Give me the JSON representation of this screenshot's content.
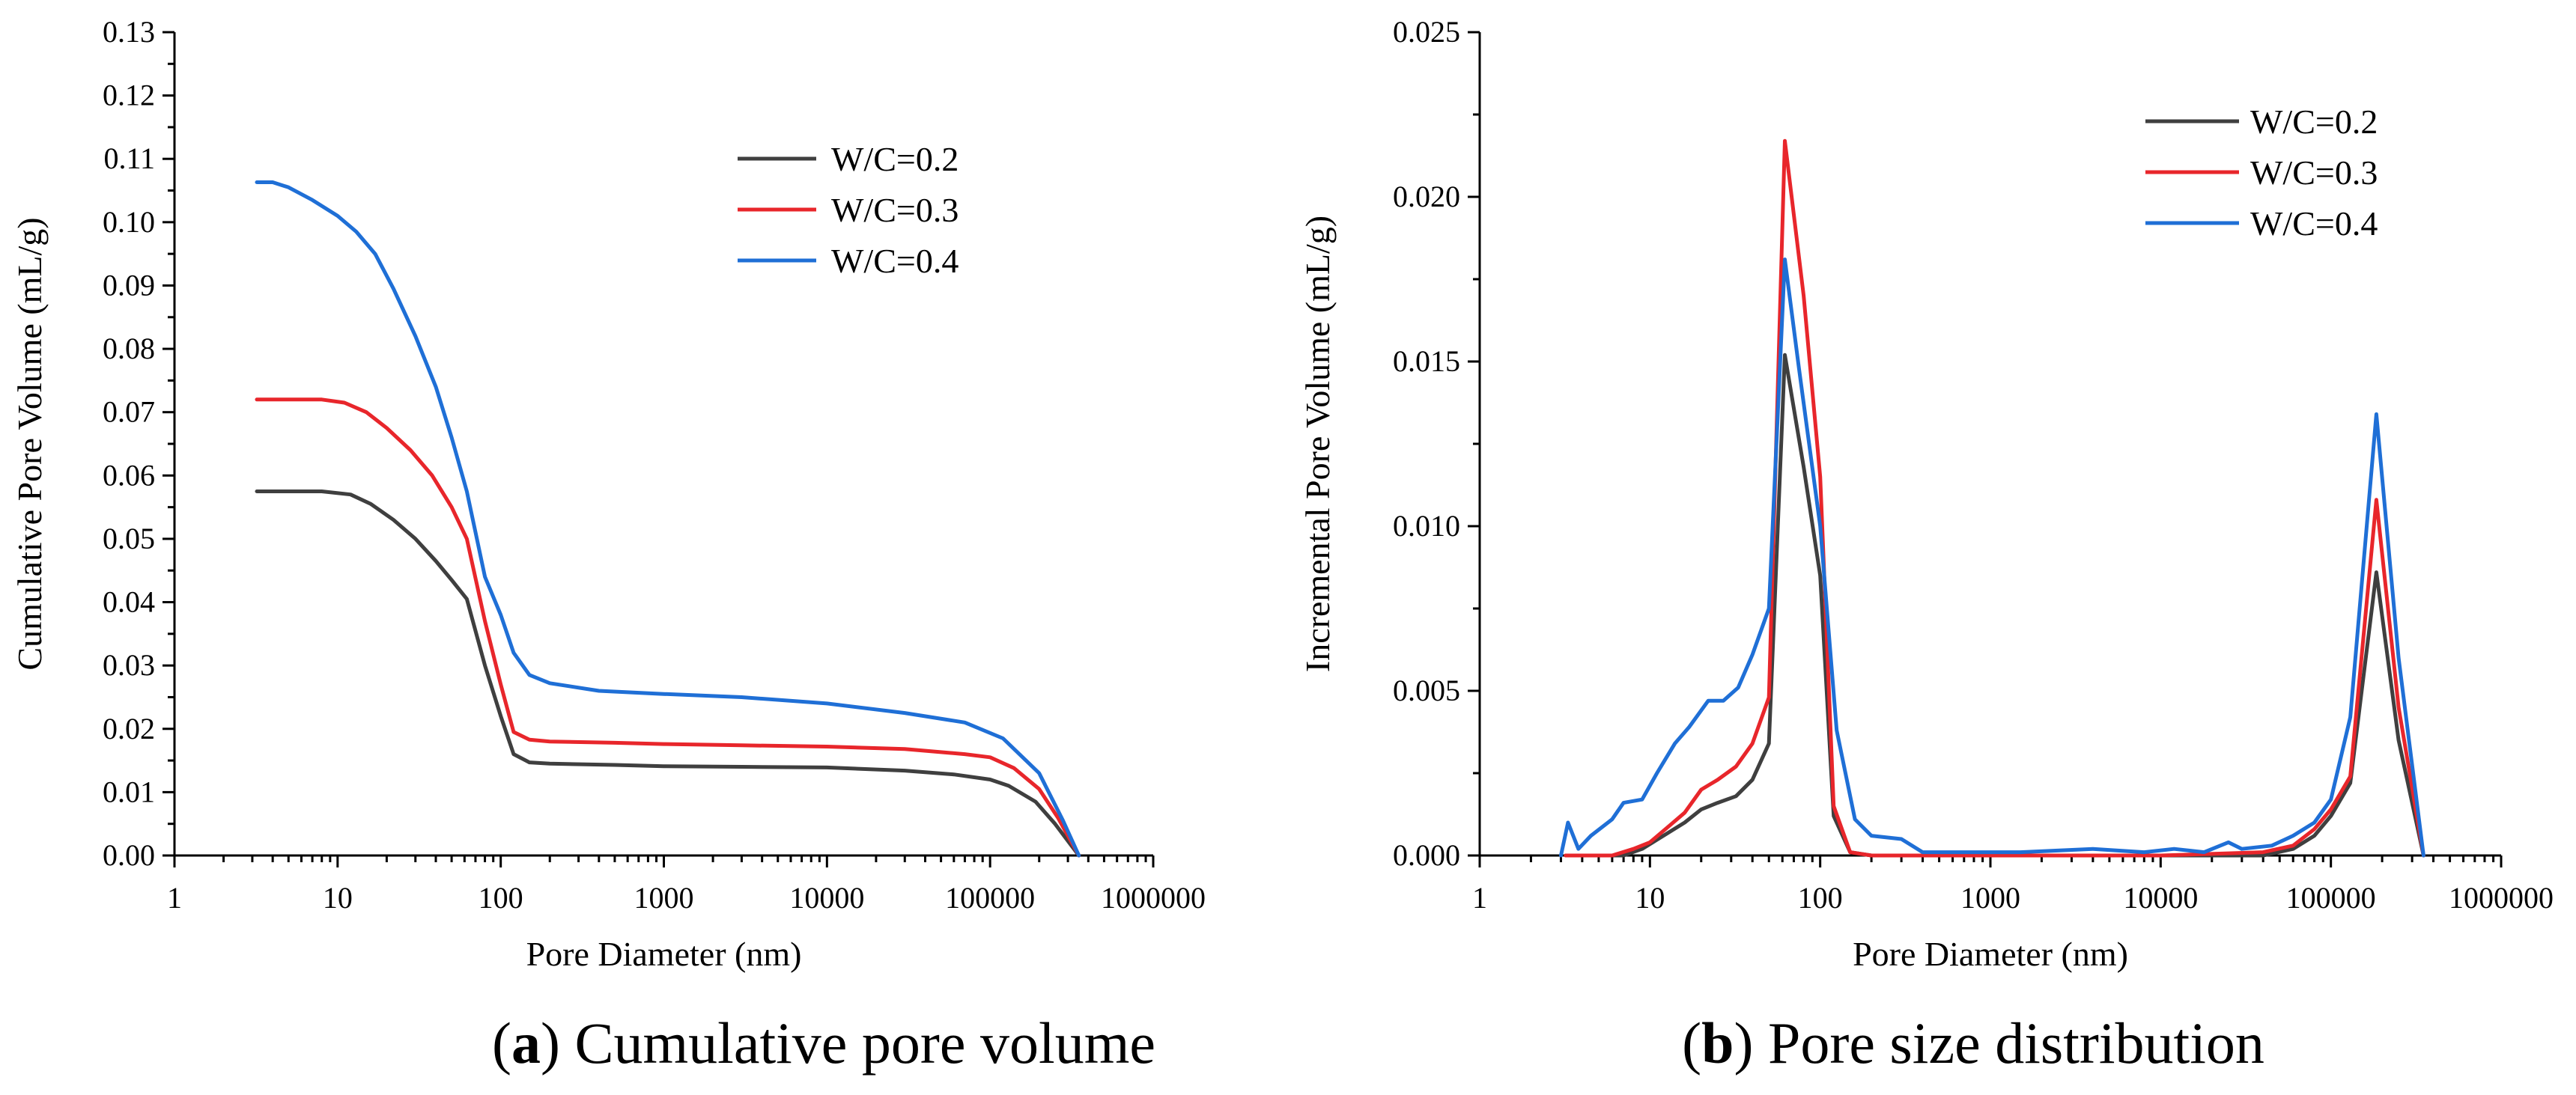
{
  "colors": {
    "wc02": "#3f3f3f",
    "wc03": "#e8262b",
    "wc04": "#1f6fd6"
  },
  "chart_data": [
    {
      "id": "a",
      "type": "line",
      "xscale": "log",
      "xlim": [
        1,
        1000000
      ],
      "ylim": [
        0,
        0.13
      ],
      "xlabel": "Pore Diameter (nm)",
      "ylabel": "Cumulative Pore Volume  (mL/g)",
      "xticks": [
        "1",
        "10",
        "100",
        "1000",
        "10000",
        "100000",
        "1000000"
      ],
      "yticks": [
        "0.00",
        "0.01",
        "0.02",
        "0.03",
        "0.04",
        "0.05",
        "0.06",
        "0.07",
        "0.08",
        "0.09",
        "0.10",
        "0.11",
        "0.12",
        "0.13"
      ],
      "caption_letter": "a",
      "caption_text": " Cumulative pore volume",
      "legend_position": "top-right",
      "series": [
        {
          "name": "W/C=0.2",
          "color_key": "wc02",
          "points": [
            [
              3.2,
              0.0575
            ],
            [
              5,
              0.0575
            ],
            [
              8,
              0.0575
            ],
            [
              12,
              0.057
            ],
            [
              16,
              0.0555
            ],
            [
              22,
              0.053
            ],
            [
              30,
              0.05
            ],
            [
              40,
              0.0465
            ],
            [
              50,
              0.0435
            ],
            [
              62,
              0.0405
            ],
            [
              80,
              0.03
            ],
            [
              100,
              0.022
            ],
            [
              120,
              0.016
            ],
            [
              150,
              0.0147
            ],
            [
              200,
              0.0145
            ],
            [
              500,
              0.0143
            ],
            [
              1000,
              0.0141
            ],
            [
              3000,
              0.014
            ],
            [
              10000,
              0.0139
            ],
            [
              30000,
              0.0134
            ],
            [
              60000,
              0.0128
            ],
            [
              100000,
              0.012
            ],
            [
              130000,
              0.011
            ],
            [
              190000,
              0.0085
            ],
            [
              250000,
              0.005
            ],
            [
              350000,
              0.0
            ]
          ]
        },
        {
          "name": "W/C=0.3",
          "color_key": "wc03",
          "points": [
            [
              3.2,
              0.072
            ],
            [
              5,
              0.072
            ],
            [
              8,
              0.072
            ],
            [
              11,
              0.0715
            ],
            [
              15,
              0.07
            ],
            [
              20,
              0.0675
            ],
            [
              28,
              0.064
            ],
            [
              38,
              0.06
            ],
            [
              50,
              0.055
            ],
            [
              62,
              0.05
            ],
            [
              80,
              0.037
            ],
            [
              100,
              0.027
            ],
            [
              120,
              0.0195
            ],
            [
              150,
              0.0183
            ],
            [
              200,
              0.018
            ],
            [
              500,
              0.0178
            ],
            [
              1000,
              0.0176
            ],
            [
              3000,
              0.0174
            ],
            [
              10000,
              0.0172
            ],
            [
              30000,
              0.0168
            ],
            [
              70000,
              0.016
            ],
            [
              100000,
              0.0155
            ],
            [
              140000,
              0.0138
            ],
            [
              200000,
              0.0105
            ],
            [
              260000,
              0.006
            ],
            [
              350000,
              0.0
            ]
          ]
        },
        {
          "name": "W/C=0.4",
          "color_key": "wc04",
          "points": [
            [
              3.2,
              0.1063
            ],
            [
              4,
              0.1063
            ],
            [
              5,
              0.1055
            ],
            [
              7,
              0.1035
            ],
            [
              10,
              0.101
            ],
            [
              13,
              0.0985
            ],
            [
              17,
              0.095
            ],
            [
              22,
              0.0895
            ],
            [
              30,
              0.082
            ],
            [
              40,
              0.074
            ],
            [
              50,
              0.066
            ],
            [
              62,
              0.0575
            ],
            [
              80,
              0.044
            ],
            [
              100,
              0.038
            ],
            [
              120,
              0.032
            ],
            [
              150,
              0.0285
            ],
            [
              200,
              0.0272
            ],
            [
              400,
              0.026
            ],
            [
              1000,
              0.0255
            ],
            [
              3000,
              0.025
            ],
            [
              10000,
              0.024
            ],
            [
              30000,
              0.0225
            ],
            [
              70000,
              0.021
            ],
            [
              120000,
              0.0185
            ],
            [
              200000,
              0.013
            ],
            [
              280000,
              0.0055
            ],
            [
              350000,
              0.0
            ]
          ]
        }
      ]
    },
    {
      "id": "b",
      "type": "line",
      "xscale": "log",
      "xlim": [
        1,
        1000000
      ],
      "ylim": [
        0,
        0.025
      ],
      "xlabel": "Pore Diameter (nm)",
      "ylabel": "Incremental Pore Volume (mL/g)",
      "xticks": [
        "1",
        "10",
        "100",
        "1000",
        "10000",
        "100000",
        "1000000"
      ],
      "yticks": [
        "0.000",
        "0.005",
        "0.010",
        "0.015",
        "0.020",
        "0.025"
      ],
      "caption_letter": "b",
      "caption_text": " Pore size distribution",
      "legend_position": "top-right",
      "series": [
        {
          "name": "W/C=0.2",
          "color_key": "wc02",
          "points": [
            [
              3.2,
              0
            ],
            [
              7,
              0
            ],
            [
              9,
              0.0002
            ],
            [
              12,
              0.0006
            ],
            [
              16,
              0.001
            ],
            [
              20,
              0.0014
            ],
            [
              25,
              0.0016
            ],
            [
              32,
              0.0018
            ],
            [
              40,
              0.0023
            ],
            [
              50,
              0.0034
            ],
            [
              62,
              0.0152
            ],
            [
              80,
              0.0118
            ],
            [
              100,
              0.0085
            ],
            [
              120,
              0.0012
            ],
            [
              150,
              0.0001
            ],
            [
              200,
              0
            ],
            [
              1000,
              0
            ],
            [
              10000,
              0
            ],
            [
              40000,
              0
            ],
            [
              60000,
              0.0002
            ],
            [
              80000,
              0.0006
            ],
            [
              100000,
              0.0012
            ],
            [
              130000,
              0.0022
            ],
            [
              185000,
              0.0086
            ],
            [
              250000,
              0.0035
            ],
            [
              350000,
              0
            ]
          ]
        },
        {
          "name": "W/C=0.3",
          "color_key": "wc03",
          "points": [
            [
              3.2,
              0
            ],
            [
              6,
              0
            ],
            [
              8,
              0.0002
            ],
            [
              10,
              0.0004
            ],
            [
              13,
              0.0009
            ],
            [
              16,
              0.0013
            ],
            [
              20,
              0.002
            ],
            [
              25,
              0.0023
            ],
            [
              32,
              0.0027
            ],
            [
              40,
              0.0034
            ],
            [
              50,
              0.0048
            ],
            [
              62,
              0.0217
            ],
            [
              80,
              0.017
            ],
            [
              100,
              0.0115
            ],
            [
              120,
              0.0015
            ],
            [
              150,
              0.0001
            ],
            [
              200,
              0
            ],
            [
              1000,
              0
            ],
            [
              10000,
              0
            ],
            [
              40000,
              0.0001
            ],
            [
              60000,
              0.0003
            ],
            [
              80000,
              0.0008
            ],
            [
              100000,
              0.0014
            ],
            [
              130000,
              0.0024
            ],
            [
              185000,
              0.0108
            ],
            [
              250000,
              0.0045
            ],
            [
              350000,
              0
            ]
          ]
        },
        {
          "name": "W/C=0.4",
          "color_key": "wc04",
          "points": [
            [
              3,
              0
            ],
            [
              3.3,
              0.001
            ],
            [
              3.8,
              0.0002
            ],
            [
              4.5,
              0.0006
            ],
            [
              6,
              0.0011
            ],
            [
              7,
              0.0016
            ],
            [
              9,
              0.0017
            ],
            [
              11,
              0.0025
            ],
            [
              14,
              0.0034
            ],
            [
              17,
              0.0039
            ],
            [
              22,
              0.0047
            ],
            [
              27,
              0.0047
            ],
            [
              33,
              0.0051
            ],
            [
              40,
              0.0061
            ],
            [
              50,
              0.0075
            ],
            [
              62,
              0.0181
            ],
            [
              75,
              0.0148
            ],
            [
              100,
              0.01
            ],
            [
              125,
              0.0038
            ],
            [
              160,
              0.0011
            ],
            [
              200,
              0.0006
            ],
            [
              300,
              0.0005
            ],
            [
              400,
              0.0001
            ],
            [
              800,
              0.0001
            ],
            [
              1500,
              0.0001
            ],
            [
              4000,
              0.0002
            ],
            [
              8000,
              0.0001
            ],
            [
              12000,
              0.0002
            ],
            [
              18000,
              0.0001
            ],
            [
              25000,
              0.0004
            ],
            [
              30000,
              0.0002
            ],
            [
              45000,
              0.0003
            ],
            [
              60000,
              0.0006
            ],
            [
              80000,
              0.001
            ],
            [
              100000,
              0.0017
            ],
            [
              130000,
              0.0042
            ],
            [
              185000,
              0.0134
            ],
            [
              250000,
              0.006
            ],
            [
              350000,
              0
            ]
          ]
        }
      ]
    }
  ]
}
